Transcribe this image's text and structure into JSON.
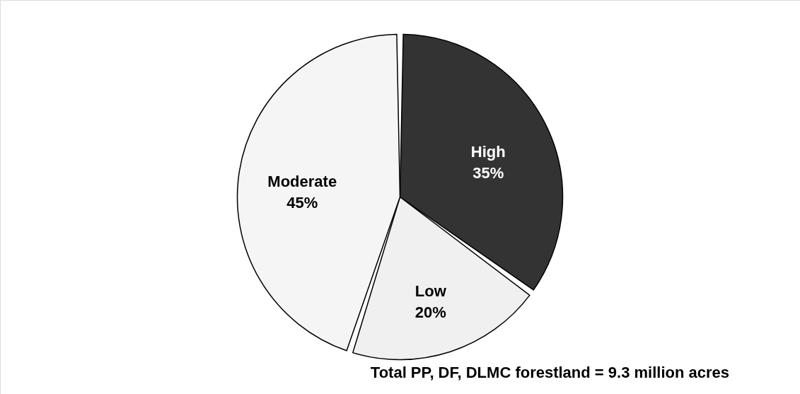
{
  "chart_data": {
    "type": "pie",
    "categories": [
      "High",
      "Low",
      "Moderate"
    ],
    "values": [
      35,
      20,
      45
    ],
    "colors": [
      "#333333",
      "#f0f0f0",
      "#f5f5f5"
    ],
    "value_labels": [
      "35%",
      "20%",
      "45%"
    ],
    "annotations": [
      "Total PP, DF, DLMC forestland = 9.3 million acres"
    ],
    "legend": false
  }
}
